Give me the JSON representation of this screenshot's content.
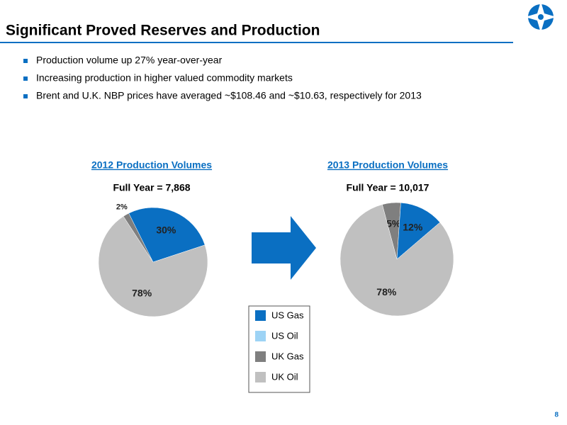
{
  "header": {
    "title": "Significant Proved Reserves and Production"
  },
  "bullets": [
    "Production volume up 27% year-over-year",
    "Increasing production in higher valued commodity markets",
    "Brent and U.K. NBP prices have averaged ~$108.46 and ~$10.63, respectively for 2013"
  ],
  "legend": [
    {
      "label": "US Gas",
      "color": "#0a6fc2"
    },
    {
      "label": "US Oil",
      "color": "#9dd3f5"
    },
    {
      "label": "UK Gas",
      "color": "#7f7f7f"
    },
    {
      "label": "UK Oil",
      "color": "#c0c0c0"
    }
  ],
  "page_number": "8",
  "chart_data": [
    {
      "type": "pie",
      "title": "2012 Production Volumes",
      "subtitle": "Full Year = 7,868",
      "values": [
        2,
        30,
        78
      ],
      "value_labels": [
        "2%",
        "30%",
        "78%"
      ],
      "colors": [
        "#7f7f7f",
        "#0a6fc2",
        "#c0c0c0"
      ]
    },
    {
      "type": "pie",
      "title": "2013 Production Volumes",
      "subtitle": "Full Year = 10,017",
      "values": [
        5,
        12,
        78
      ],
      "value_labels": [
        "5%",
        "12%",
        "78%"
      ],
      "colors": [
        "#7f7f7f",
        "#0a6fc2",
        "#c0c0c0"
      ]
    }
  ]
}
